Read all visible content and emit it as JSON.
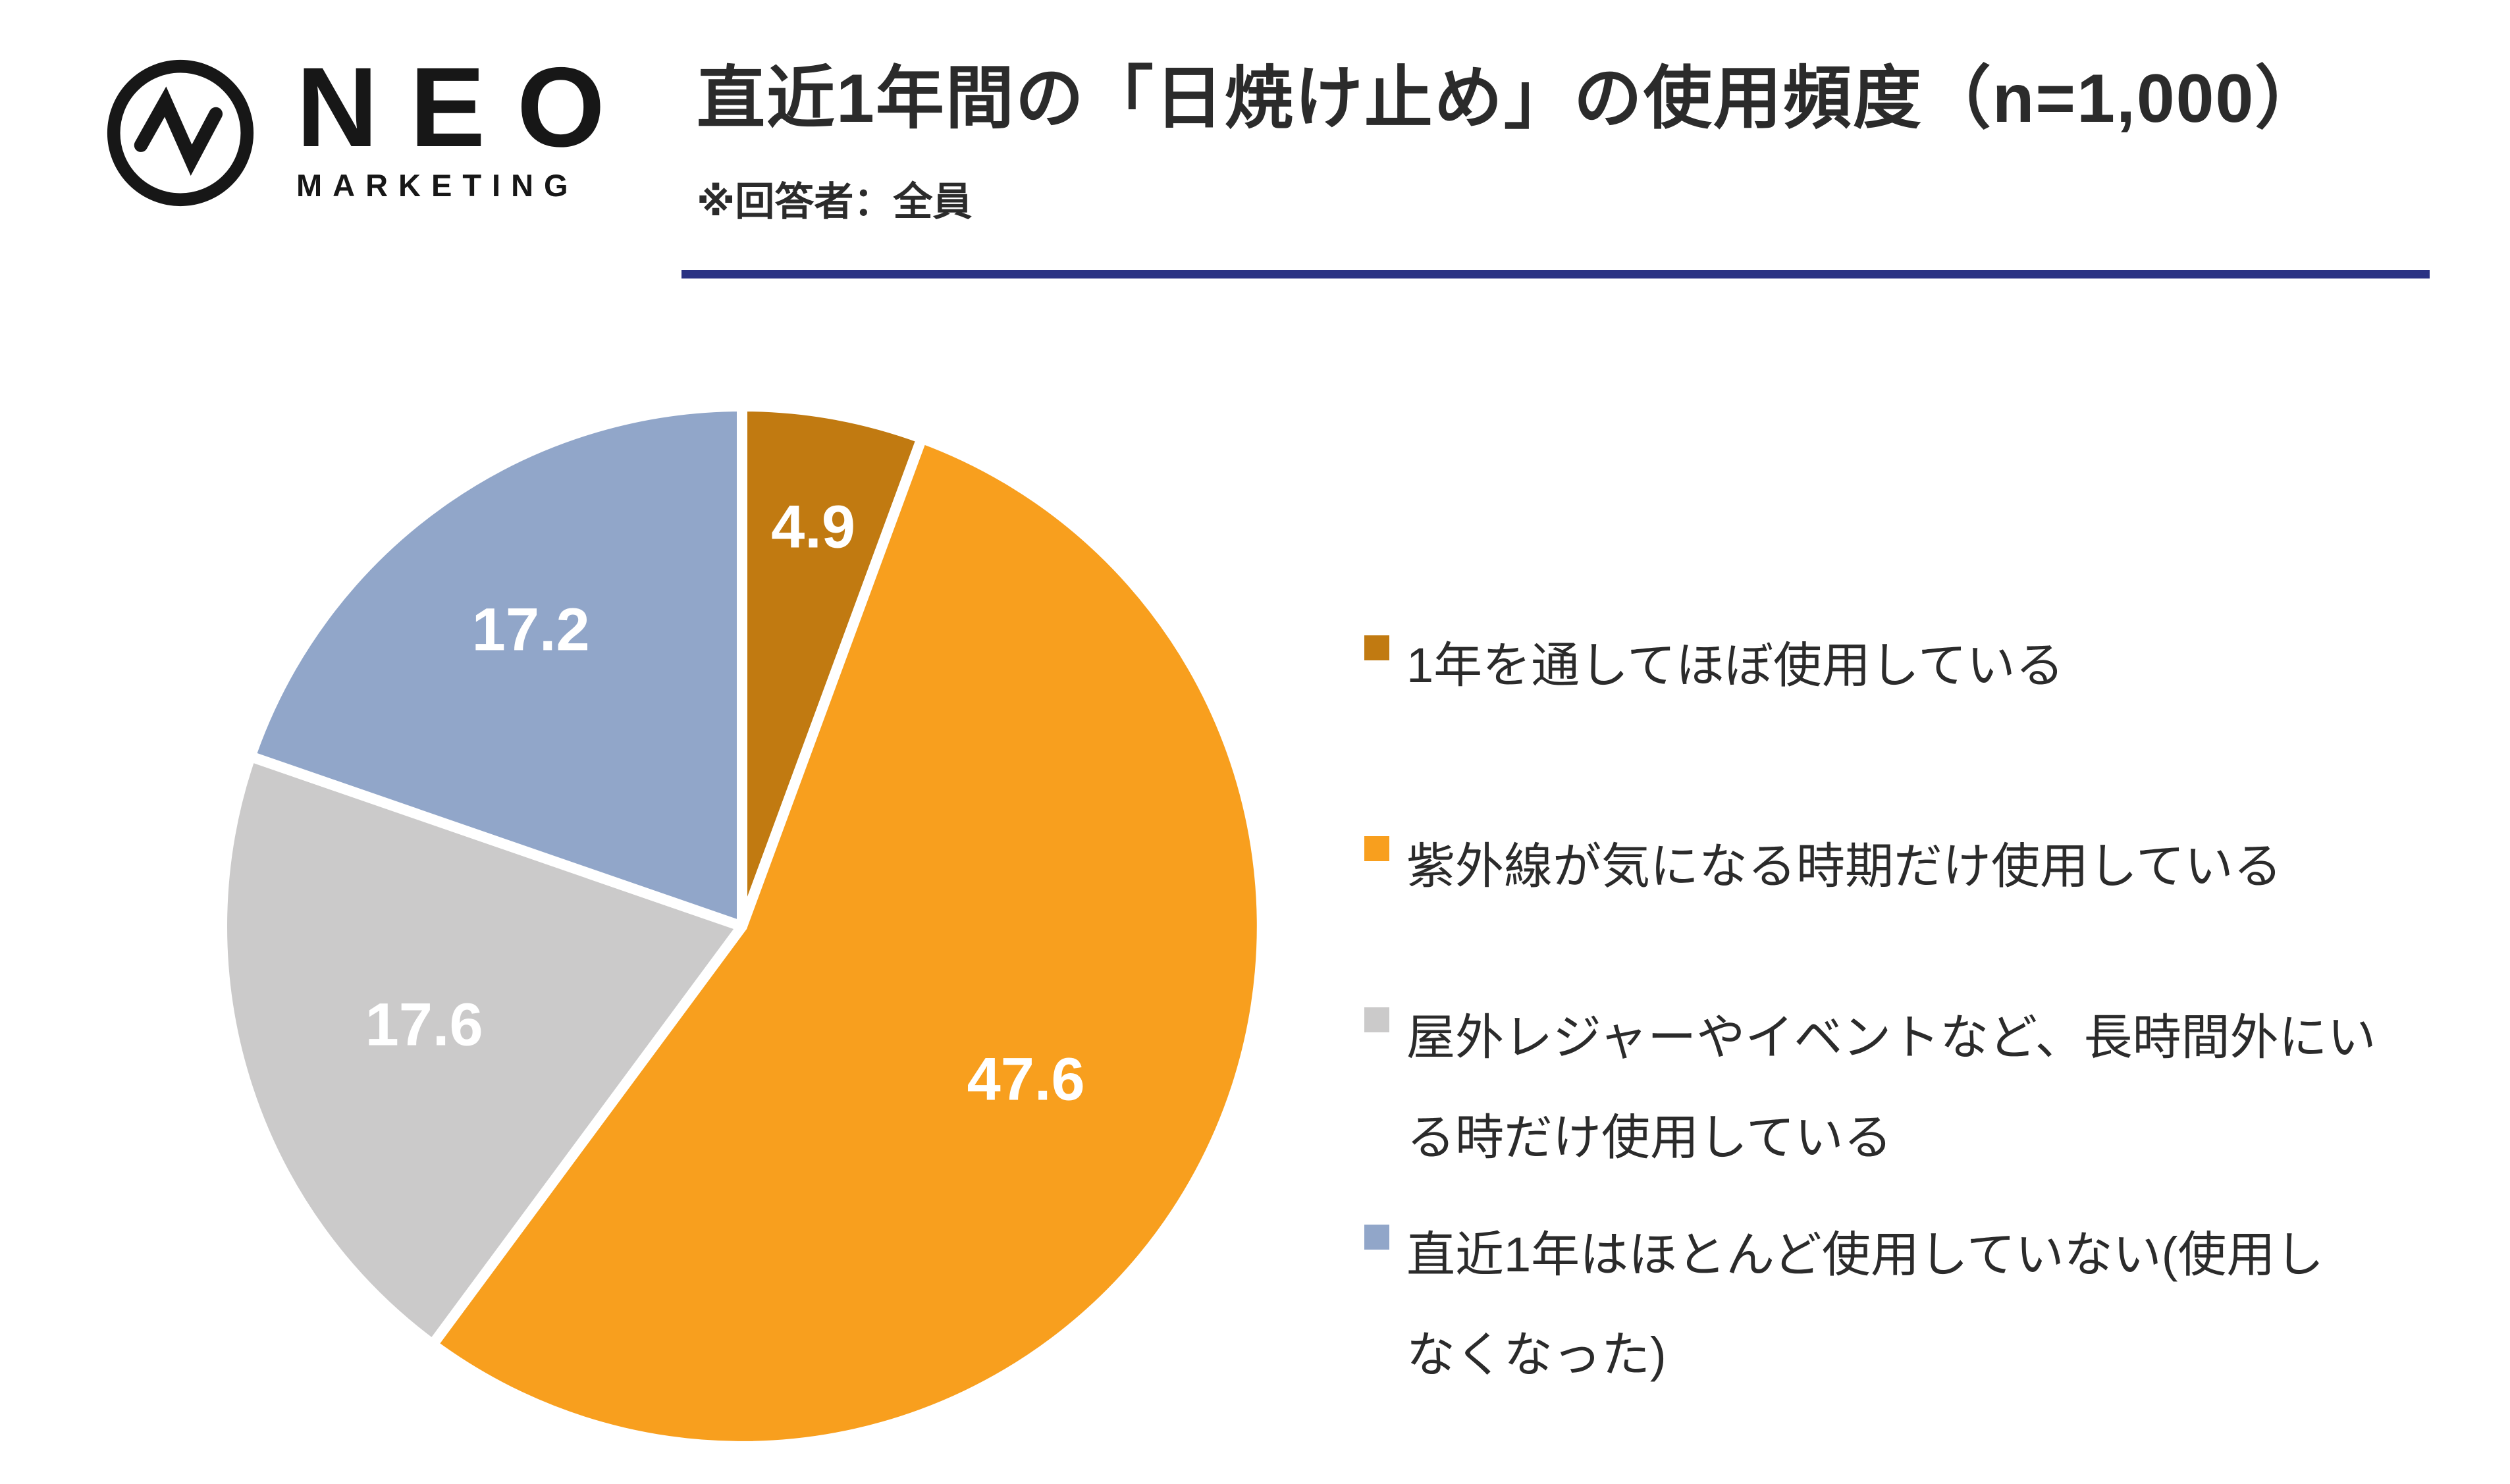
{
  "brand": {
    "name_top": "NEO",
    "name_bottom": "MARKETING"
  },
  "header": {
    "title": "直近1年間の「日焼け止め」の使用頻度（n=1,000）",
    "note": "※回答者：全員"
  },
  "colors": {
    "divider": "#2A3283",
    "background": "#FFFFFF",
    "pie_label_text": "#FFFFFF",
    "body_text": "#2B2B2B",
    "logo": "#171717"
  },
  "chart_data": {
    "type": "pie",
    "title": "直近1年間の「日焼け止め」の使用頻度（n=1,000）",
    "note": "※回答者：全員",
    "n": "1,000",
    "unit": "%",
    "legend_position": "right",
    "start_angle": "12-o-clock, clockwise",
    "slices": [
      {
        "label": "1年を通してほぼ使用している",
        "label_lines": [
          "1年を通してほぼ使用している"
        ],
        "value": 4.9,
        "data_label": "4.9",
        "color": "#C17A11"
      },
      {
        "label": "紫外線が気になる時期だけ使用している",
        "label_lines": [
          "紫外線が気になる時期だけ使用している"
        ],
        "value": 47.6,
        "data_label": "47.6",
        "color": "#F89F1E"
      },
      {
        "label": "屋外レジャーやイベントなど、長時間外にいる時だけ使用している",
        "label_lines": [
          "屋外レジャーやイベントなど、長時間外にい",
          "る時だけ使用している"
        ],
        "value": 17.6,
        "data_label": "17.6",
        "color": "#CBCACA"
      },
      {
        "label": "直近1年はほとんど使用していない(使用しなくなった)",
        "label_lines": [
          "直近1年はほとんど使用していない(使用し",
          "なくなった)"
        ],
        "value": 17.2,
        "data_label": "17.2",
        "color": "#91A6C9"
      }
    ]
  }
}
